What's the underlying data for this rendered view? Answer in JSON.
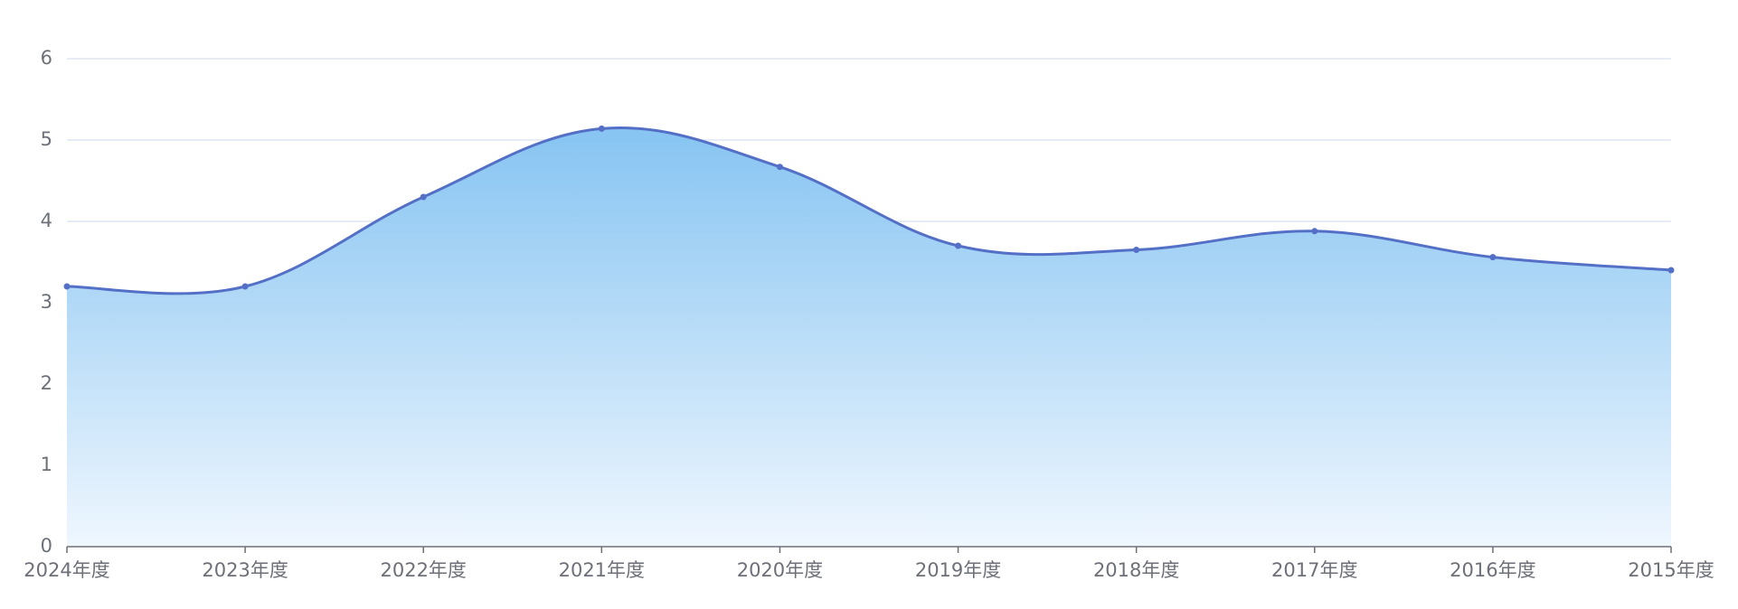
{
  "chart_data": {
    "type": "line",
    "categories": [
      "2024年度",
      "2023年度",
      "2022年度",
      "2021年度",
      "2020年度",
      "2019年度",
      "2018年度",
      "2017年度",
      "2016年度",
      "2015年度"
    ],
    "values": [
      3.2,
      3.2,
      4.3,
      5.14,
      4.67,
      3.7,
      3.65,
      3.88,
      3.56,
      3.4
    ],
    "color": "#5470c6",
    "ylim": [
      0,
      6
    ],
    "yticks": [
      0,
      1,
      2,
      3,
      4,
      5,
      6
    ],
    "grid": true,
    "smooth": true
  }
}
